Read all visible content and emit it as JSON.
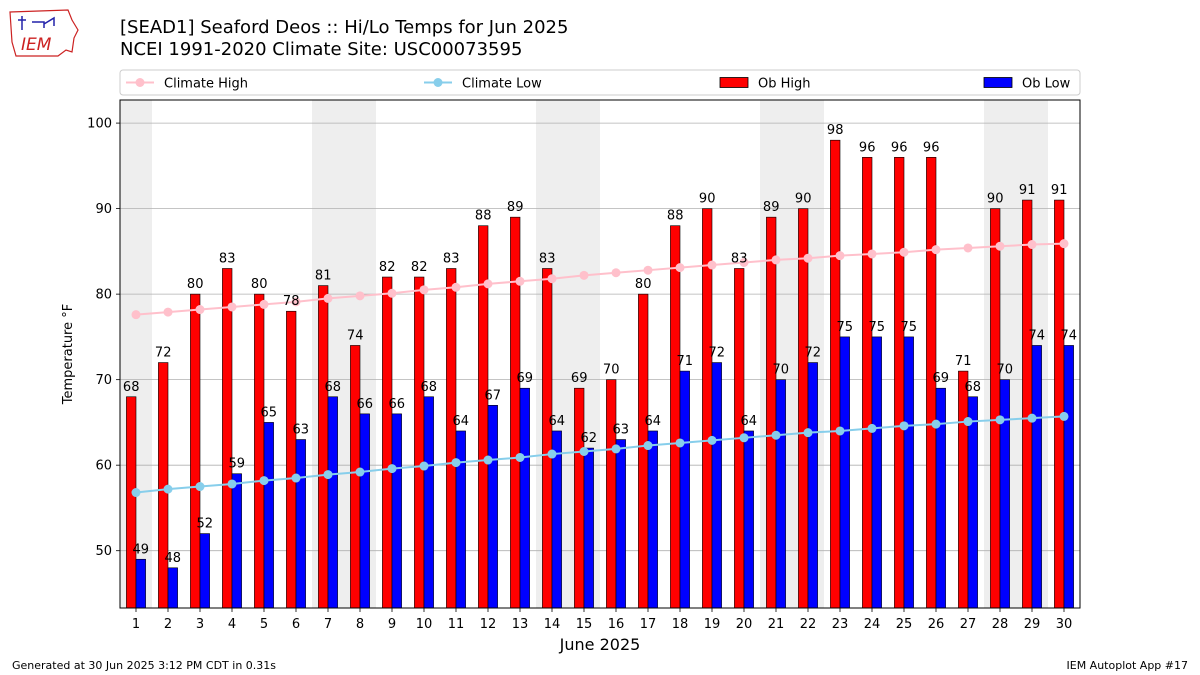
{
  "header": {
    "title_line1": "[SEAD1] Seaford Deos :: Hi/Lo Temps for Jun 2025",
    "title_line2": "NCEI 1991-2020 Climate Site: USC00073595",
    "logo_text": "IEM"
  },
  "footer": {
    "generated": "Generated at 30 Jun 2025 3:12 PM CDT in 0.31s",
    "app": "IEM Autoplot App #17"
  },
  "colors": {
    "ob_high": "#ff0000",
    "ob_low": "#0000ff",
    "climate_high": "#ffc0cb",
    "climate_low": "#87ceeb",
    "weekend_band": "#eeeeee",
    "logo": "#cc2222"
  },
  "chart_data": {
    "type": "bar",
    "xlabel": "June 2025",
    "ylabel": "Temperature °F",
    "ylim": [
      43.3,
      102.7
    ],
    "yticks": [
      50,
      60,
      70,
      80,
      90,
      100
    ],
    "grid": true,
    "legend_placement": "top",
    "categories": [
      "1",
      "2",
      "3",
      "4",
      "5",
      "6",
      "7",
      "8",
      "9",
      "10",
      "11",
      "12",
      "13",
      "14",
      "15",
      "16",
      "17",
      "18",
      "19",
      "20",
      "21",
      "22",
      "23",
      "24",
      "25",
      "26",
      "27",
      "28",
      "29",
      "30"
    ],
    "shaded_days": [
      1,
      7,
      8,
      14,
      15,
      21,
      22,
      28,
      29
    ],
    "series": [
      {
        "name": "Ob High",
        "kind": "bar",
        "values": [
          68,
          72,
          80,
          83,
          80,
          78,
          81,
          74,
          82,
          82,
          83,
          88,
          89,
          83,
          69,
          70,
          80,
          88,
          90,
          83,
          89,
          90,
          98,
          96,
          96,
          96,
          71,
          90,
          91,
          91
        ]
      },
      {
        "name": "Ob Low",
        "kind": "bar",
        "values": [
          49,
          48,
          52,
          59,
          65,
          63,
          68,
          66,
          66,
          68,
          64,
          67,
          69,
          64,
          62,
          63,
          64,
          71,
          72,
          64,
          70,
          72,
          75,
          75,
          75,
          69,
          68,
          70,
          74,
          74
        ]
      },
      {
        "name": "Climate High",
        "kind": "line",
        "values": [
          77.6,
          77.9,
          78.2,
          78.5,
          78.8,
          79.1,
          79.5,
          79.8,
          80.1,
          80.5,
          80.8,
          81.2,
          81.5,
          81.8,
          82.2,
          82.5,
          82.8,
          83.1,
          83.4,
          83.7,
          84.0,
          84.2,
          84.5,
          84.7,
          84.9,
          85.2,
          85.4,
          85.6,
          85.8,
          85.9
        ]
      },
      {
        "name": "Climate Low",
        "kind": "line",
        "values": [
          56.8,
          57.2,
          57.5,
          57.8,
          58.2,
          58.5,
          58.9,
          59.2,
          59.6,
          59.9,
          60.3,
          60.6,
          60.9,
          61.3,
          61.6,
          61.9,
          62.3,
          62.6,
          62.9,
          63.2,
          63.5,
          63.8,
          64.0,
          64.3,
          64.6,
          64.8,
          65.1,
          65.3,
          65.5,
          65.7
        ]
      }
    ]
  }
}
